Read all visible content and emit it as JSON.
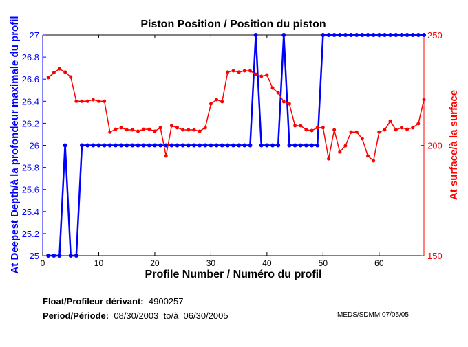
{
  "chart_data": {
    "type": "line",
    "title": "Piston Position / Position du piston",
    "xlabel": "Profile Number / Numéro du profil",
    "ylabel_left": "At Deepest Depth/à la profondeur maximale du profil",
    "ylabel_right": "At surface/à la surface",
    "xlim": [
      0,
      68
    ],
    "ylim_left": [
      25,
      27
    ],
    "ylim_right": [
      150,
      250
    ],
    "x_ticks": [
      0,
      10,
      20,
      30,
      40,
      50,
      60
    ],
    "y_ticks_left": [
      "25",
      "25.2",
      "25.4",
      "25.6",
      "25.8",
      "26",
      "26.2",
      "26.4",
      "26.6",
      "26.8",
      "27"
    ],
    "y_ticks_right": [
      "150",
      "200",
      "250"
    ],
    "series": [
      {
        "name": "At Deepest Depth",
        "axis": "left",
        "color": "#0000ff",
        "values": [
          25,
          25,
          25,
          26,
          25,
          25,
          26,
          26,
          26,
          26,
          26,
          26,
          26,
          26,
          26,
          26,
          26,
          26,
          26,
          26,
          26,
          26,
          26,
          26,
          26,
          26,
          26,
          26,
          26,
          26,
          26,
          26,
          26,
          26,
          26,
          26,
          26,
          27,
          26,
          26,
          26,
          26,
          27,
          26,
          26,
          26,
          26,
          26,
          26,
          27,
          27,
          27,
          27,
          27,
          27,
          27,
          27,
          27,
          27,
          27,
          27,
          27,
          27,
          27,
          27,
          27,
          27,
          27
        ]
      },
      {
        "name": "At surface",
        "axis": "right",
        "color": "#ff0000",
        "values": [
          230.7,
          232.9,
          234.7,
          233.2,
          231,
          220,
          220,
          220,
          220.7,
          220,
          220,
          206,
          207.3,
          208,
          207,
          207,
          206.4,
          207.3,
          207.3,
          206.4,
          208,
          195.2,
          208.9,
          208,
          207,
          207,
          207,
          206.4,
          208,
          218.8,
          220.7,
          219.8,
          233.2,
          233.8,
          233.2,
          233.8,
          233.8,
          232.2,
          231.3,
          231.9,
          226,
          223.8,
          219.8,
          218.8,
          208.9,
          208.9,
          207,
          206.7,
          208,
          208,
          193.9,
          207,
          197,
          199.8,
          206,
          206,
          203,
          195.2,
          193,
          206,
          207,
          211,
          207,
          208,
          207.3,
          208,
          209.8,
          220.7
        ]
      }
    ]
  },
  "footer": {
    "float_label": "Float/Profileur dérivant:",
    "float_value": "4900257",
    "period_label": "Period/Période:",
    "period_start": "08/30/2003",
    "period_to": "to/à",
    "period_end": "06/30/2005",
    "credit": "MEDS/SDMM  07/05/05"
  }
}
